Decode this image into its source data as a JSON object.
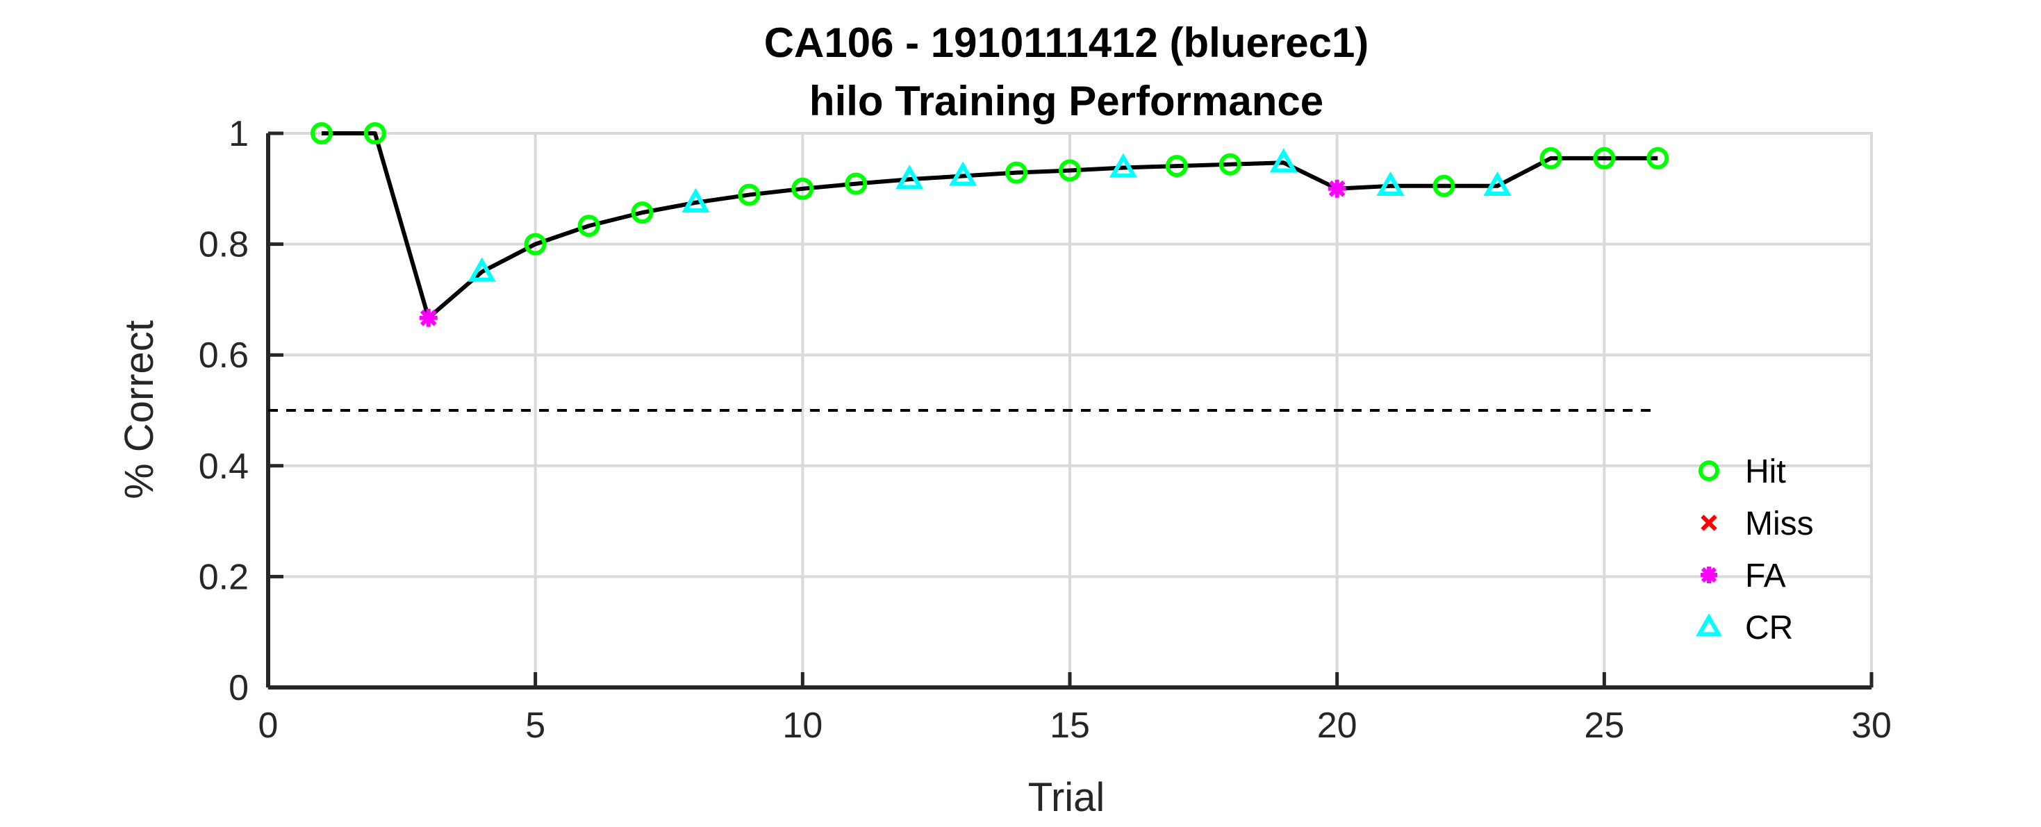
{
  "chart_data": {
    "type": "line",
    "title": "CA106 - 1910111412 (bluerec1)",
    "subtitle": "hilo Training Performance",
    "xlabel": "Trial",
    "ylabel": "% Correct",
    "xlim": [
      0,
      30
    ],
    "ylim": [
      0,
      1
    ],
    "xticks": [
      0,
      5,
      10,
      15,
      20,
      25,
      30
    ],
    "yticks": [
      0,
      0.2,
      0.4,
      0.6,
      0.8,
      1
    ],
    "xtick_labels": [
      "0",
      "5",
      "10",
      "15",
      "20",
      "25",
      "30"
    ],
    "ytick_labels": [
      "0",
      "0.2",
      "0.4",
      "0.6",
      "0.8",
      "1"
    ],
    "grid": true,
    "legend_position": "lower-right",
    "x": [
      1,
      2,
      3,
      4,
      5,
      6,
      7,
      8,
      9,
      10,
      11,
      12,
      13,
      14,
      15,
      16,
      17,
      18,
      19,
      20,
      21,
      22,
      23,
      24,
      25,
      26
    ],
    "y": [
      1.0,
      1.0,
      0.667,
      0.75,
      0.8,
      0.833,
      0.857,
      0.875,
      0.889,
      0.9,
      0.909,
      0.917,
      0.923,
      0.929,
      0.933,
      0.938,
      0.941,
      0.944,
      0.947,
      0.9,
      0.905,
      0.905,
      0.905,
      0.955,
      0.955,
      0.955
    ],
    "outcome": [
      "Hit",
      "Hit",
      "FA",
      "CR",
      "Hit",
      "Hit",
      "Hit",
      "CR",
      "Hit",
      "Hit",
      "Hit",
      "CR",
      "CR",
      "Hit",
      "Hit",
      "CR",
      "Hit",
      "Hit",
      "CR",
      "FA",
      "CR",
      "Hit",
      "CR",
      "Hit",
      "Hit",
      "Hit"
    ],
    "chance_line": {
      "y": 0.5,
      "x": [
        0,
        26
      ],
      "style": "dashed",
      "color": "#000000"
    },
    "line_color": "#000000",
    "series": [
      {
        "name": "Hit",
        "marker": "circle",
        "color": "#00ff00"
      },
      {
        "name": "Miss",
        "marker": "x",
        "color": "#ff0000"
      },
      {
        "name": "FA",
        "marker": "asterisk",
        "color": "#ff00ff"
      },
      {
        "name": "CR",
        "marker": "triangle",
        "color": "#00ffff"
      }
    ]
  }
}
